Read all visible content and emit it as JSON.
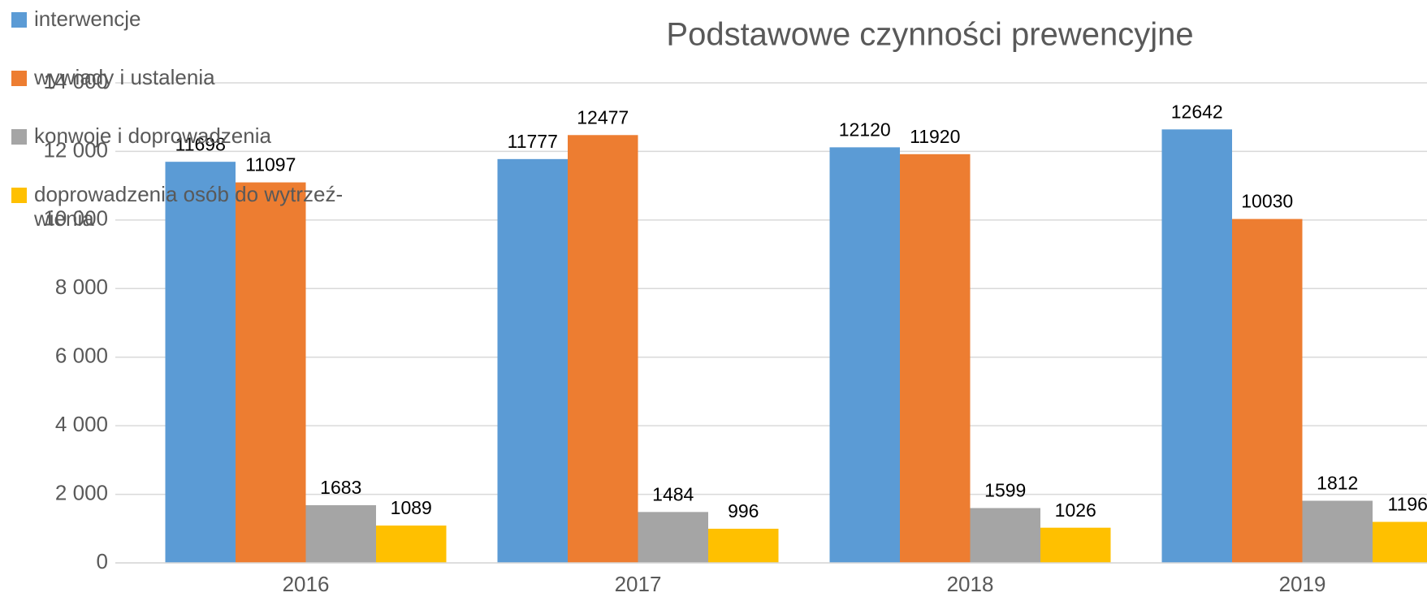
{
  "chart_data": {
    "type": "bar",
    "title": "Podstawowe czynności prewencyjne",
    "categories": [
      "2016",
      "2017",
      "2018",
      "2019"
    ],
    "series": [
      {
        "name": "interwencje",
        "color": "#5b9bd5",
        "values": [
          11698,
          11777,
          12120,
          12642
        ]
      },
      {
        "name": "wywiady i ustalenia",
        "color": "#ed7d31",
        "values": [
          11097,
          12477,
          11920,
          10030
        ]
      },
      {
        "name": "konwoje i doprowadzenia",
        "color": "#a5a5a5",
        "values": [
          1683,
          1484,
          1599,
          1812
        ]
      },
      {
        "name": "doprowadzenia osób do wytrzeź-\nwienia",
        "color": "#ffc000",
        "values": [
          1089,
          996,
          1026,
          1196
        ]
      }
    ],
    "ylim": [
      0,
      14000
    ],
    "yticks": [
      0,
      {
        "value": 2000,
        "label": "2 000"
      },
      {
        "value": 4000,
        "label": "4 000"
      },
      {
        "value": 6000,
        "label": "6 000"
      },
      {
        "value": 8000,
        "label": "8 000"
      },
      {
        "value": 10000,
        "label": "10 000"
      },
      {
        "value": 12000,
        "label": "12 000"
      },
      {
        "value": 14000,
        "label": "14 000"
      }
    ],
    "grid": true,
    "legend": "top-left"
  }
}
